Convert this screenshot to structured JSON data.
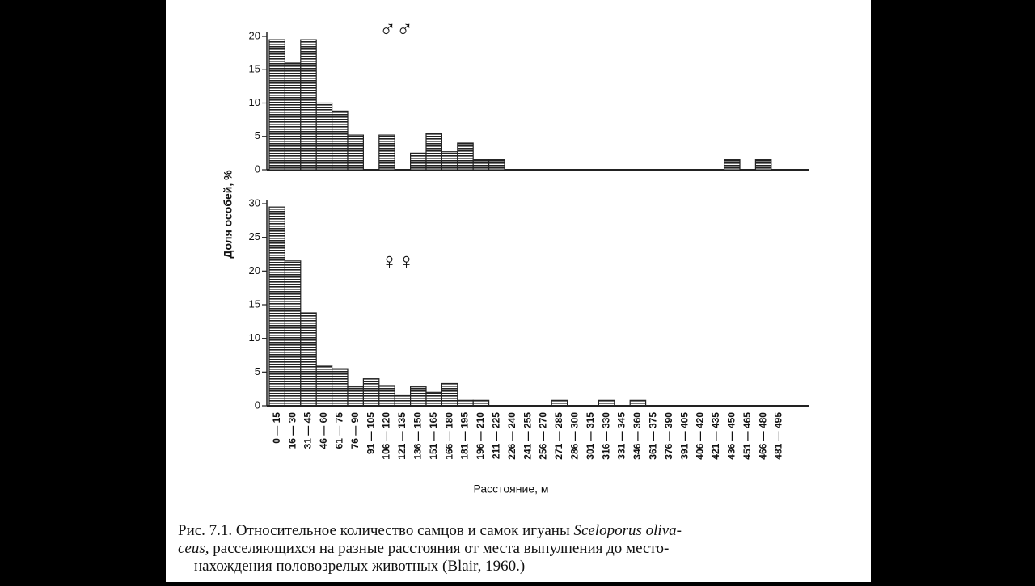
{
  "chart_data": [
    {
      "type": "bar",
      "title": "♂♂",
      "values": [
        19.5,
        16,
        19.5,
        10,
        8.8,
        5.2,
        0,
        5.2,
        0,
        2.5,
        5.4,
        2.7,
        4,
        1.5,
        1.5,
        0,
        0,
        0,
        0,
        0,
        0,
        0,
        0,
        0,
        0,
        0,
        0,
        0,
        0,
        1.5,
        0,
        1.5,
        0
      ],
      "ylim": [
        0,
        20
      ],
      "yticks": [
        0,
        5,
        10,
        15,
        20
      ],
      "ylabel": "Доля особей, %"
    },
    {
      "type": "bar",
      "title": "♀♀",
      "categories": [
        "0 — 15",
        "16 — 30",
        "31 — 45",
        "46 — 60",
        "61 — 75",
        "76 — 90",
        "91 — 105",
        "106 — 120",
        "121 — 135",
        "136 — 150",
        "151 — 165",
        "166 — 180",
        "181 — 195",
        "196 — 210",
        "211 — 225",
        "226 — 240",
        "241 — 255",
        "256 — 270",
        "271 — 285",
        "286 — 300",
        "301 — 315",
        "316 — 330",
        "331 — 345",
        "346 — 360",
        "361 — 375",
        "376 — 390",
        "391 — 405",
        "406 — 420",
        "421 — 435",
        "436 — 450",
        "451 — 465",
        "466 — 480",
        "481 — 495"
      ],
      "values": [
        29.5,
        21.5,
        13.8,
        6,
        5.5,
        2.8,
        4,
        3,
        1.5,
        2.8,
        2,
        3.3,
        0.8,
        0.8,
        0,
        0,
        0,
        0,
        0.8,
        0,
        0,
        0.8,
        0,
        0.8,
        0,
        0,
        0,
        0,
        0,
        0,
        0,
        0,
        0
      ],
      "ylim": [
        0,
        30
      ],
      "yticks": [
        0,
        5,
        10,
        15,
        20,
        25,
        30
      ],
      "xlabel": "Расстояние, м"
    }
  ],
  "caption": [
    [
      "Рис. 7.1. Относительное количество самцов и самок игуаны ",
      "Sceloporus oliva-"
    ],
    [
      "ceus,",
      " расселяющихся на разные расстояния от места выпулпения до место-"
    ],
    [
      "нахождения половозрелых животных (Blair, 1960.)"
    ]
  ]
}
